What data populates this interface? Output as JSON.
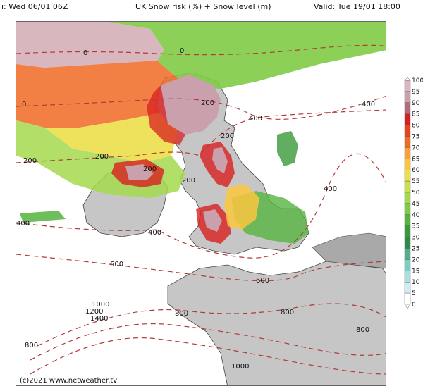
{
  "header": {
    "left": "ı: Wed 06/01 06Z",
    "center": "UK Snow risk (%) + Snow level (m)",
    "right": "Valid: Tue 19/01 18:00"
  },
  "footer": {
    "copyright": "(c)2021 www.netweather.tv"
  },
  "legend": {
    "ticks": [
      "100",
      "95",
      "90",
      "85",
      "80",
      "75",
      "70",
      "65",
      "60",
      "55",
      "50",
      "45",
      "40",
      "35",
      "30",
      "25",
      "20",
      "15",
      "10",
      "5",
      "0"
    ],
    "colors": [
      "#ffffff",
      "#d9b7bf",
      "#c9a0ab",
      "#b36a7a",
      "#d81f1f",
      "#e8421f",
      "#f06a23",
      "#f9a03a",
      "#fbc63f",
      "#ecdf4a",
      "#c9e04d",
      "#a4d94c",
      "#7fcb45",
      "#55b440",
      "#3a9a3a",
      "#2f8a45",
      "#4fb08a",
      "#7ccdc3",
      "#a8dfe0",
      "#cfeef2",
      "#ffffff"
    ]
  },
  "snow_levels": [
    {
      "label": "0"
    },
    {
      "label": "0"
    },
    {
      "label": "0"
    },
    {
      "label": "200"
    },
    {
      "label": "200"
    },
    {
      "label": "200"
    },
    {
      "label": "200"
    },
    {
      "label": "200"
    },
    {
      "label": "200"
    },
    {
      "label": "400"
    },
    {
      "label": "400"
    },
    {
      "label": "400"
    },
    {
      "label": "400"
    },
    {
      "label": "400"
    },
    {
      "label": "600"
    },
    {
      "label": "600"
    },
    {
      "label": "800"
    },
    {
      "label": "800"
    },
    {
      "label": "800"
    },
    {
      "label": "800"
    },
    {
      "label": "1000"
    },
    {
      "label": "1000"
    },
    {
      "label": "1200"
    },
    {
      "label": "1400"
    }
  ],
  "colors": {
    "sea": "#ffffff",
    "land": "#c6c6c6",
    "land_dark": "#a9a9a9",
    "contour": "#b23a3a",
    "snow_level_label": "#111111"
  }
}
